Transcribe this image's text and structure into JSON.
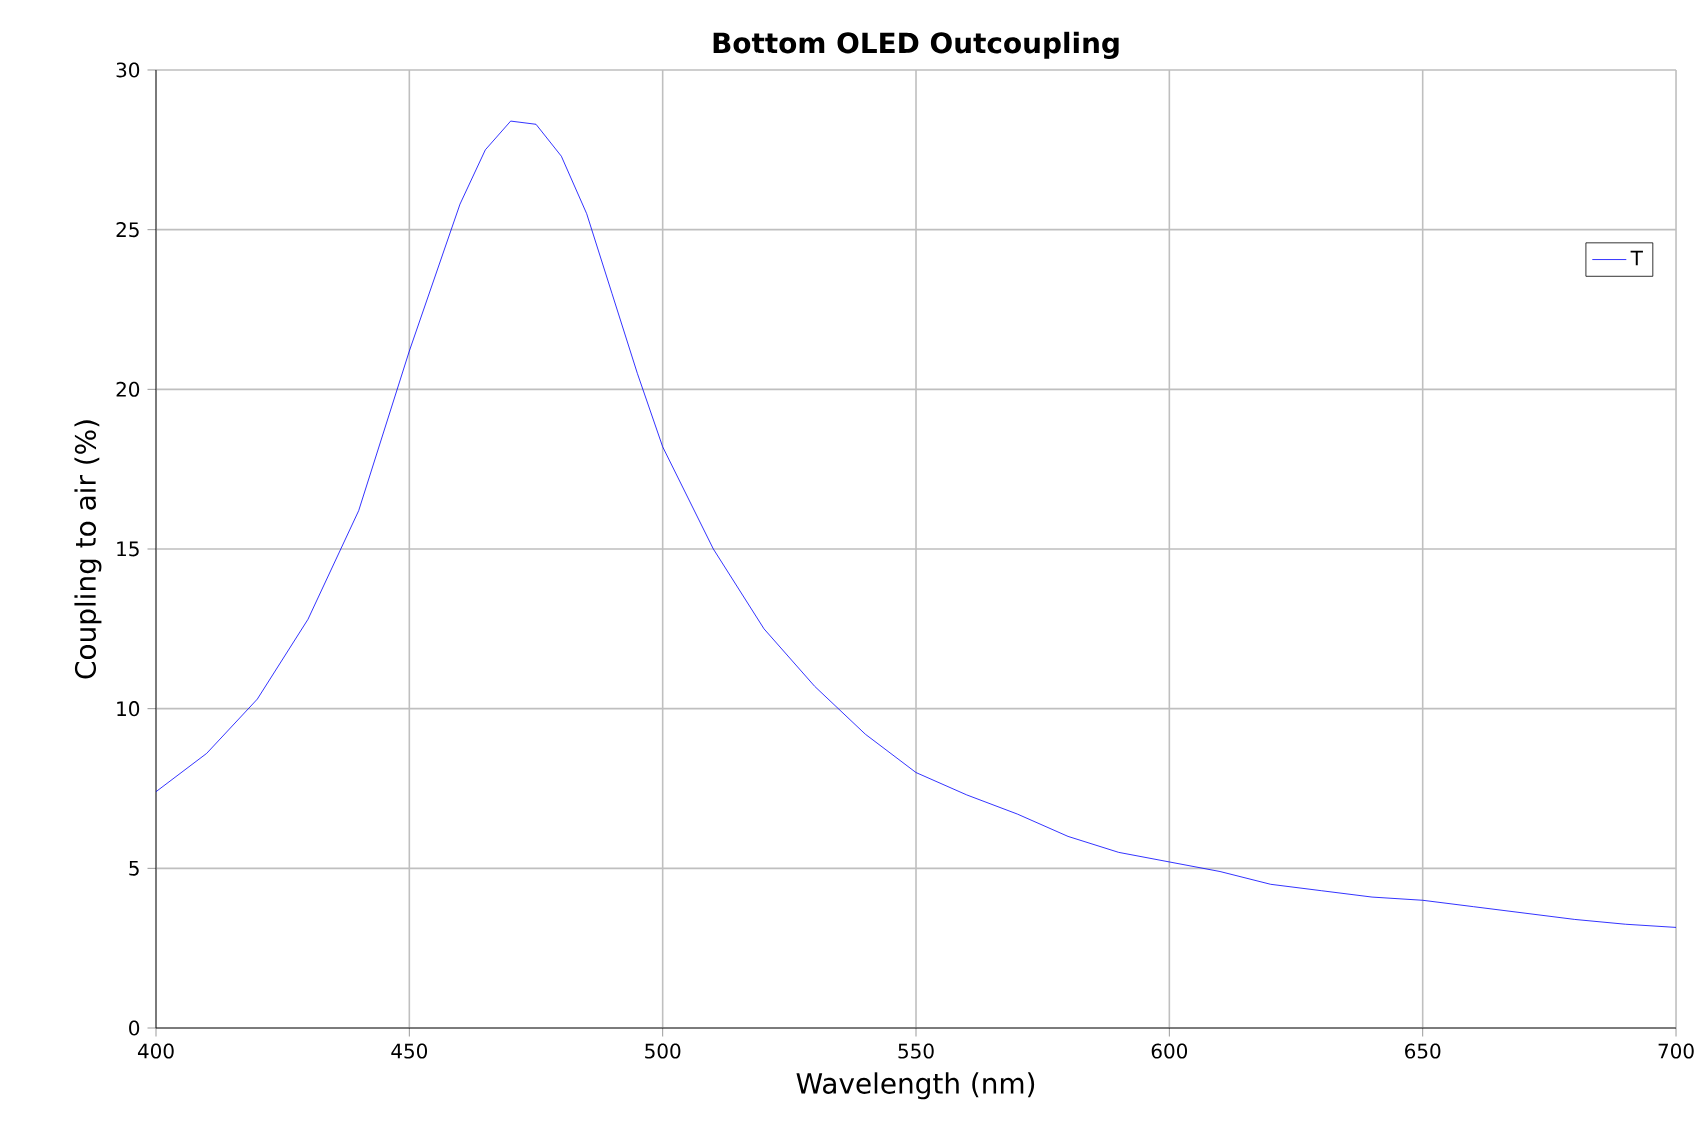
{
  "chart_data": {
    "type": "line",
    "title": "Bottom OLED Outcoupling",
    "xlabel": "Wavelength (nm)",
    "ylabel": "Coupling to air (%)",
    "x": [
      400,
      410,
      420,
      430,
      440,
      450,
      455,
      460,
      465,
      470,
      475,
      480,
      485,
      490,
      495,
      500,
      510,
      520,
      530,
      540,
      550,
      560,
      570,
      580,
      590,
      600,
      610,
      620,
      630,
      640,
      650,
      660,
      670,
      680,
      690,
      700
    ],
    "series": [
      {
        "name": "T",
        "color": "#0000ff",
        "values": [
          7.4,
          8.6,
          10.3,
          12.8,
          16.2,
          21.2,
          23.5,
          25.8,
          27.5,
          28.4,
          28.3,
          27.3,
          25.5,
          23.0,
          20.5,
          18.2,
          15.0,
          12.5,
          10.7,
          9.2,
          8.0,
          7.3,
          6.7,
          6.0,
          5.5,
          5.2,
          4.9,
          4.5,
          4.3,
          4.1,
          4.0,
          3.8,
          3.6,
          3.4,
          3.25,
          3.15
        ]
      }
    ],
    "xlim": [
      400,
      700
    ],
    "ylim": [
      0,
      30
    ],
    "xticks": [
      400,
      450,
      500,
      550,
      600,
      650,
      700
    ],
    "yticks": [
      0,
      5,
      10,
      15,
      20,
      25,
      30
    ],
    "grid": true,
    "legend": "top right"
  }
}
